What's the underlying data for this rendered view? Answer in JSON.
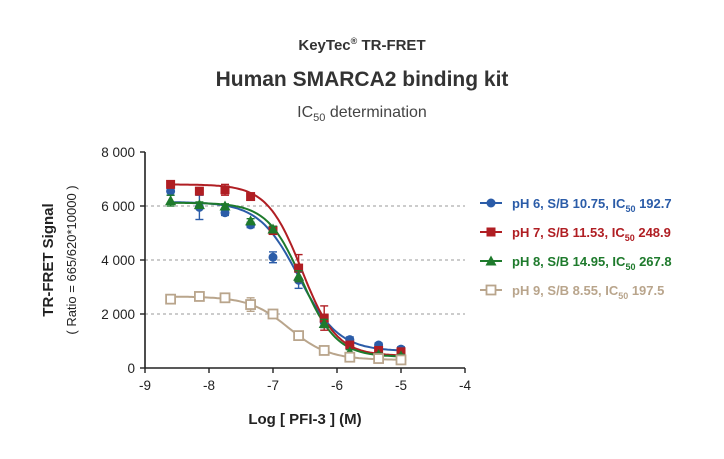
{
  "header": {
    "brand": "KeyTec",
    "brand_mark": "®",
    "brand_suffix": " TR-FRET",
    "title": "Human SMARCA2 binding kit",
    "subtitle_prefix": "IC",
    "subtitle_sub": "50",
    "subtitle_suffix": " determination"
  },
  "chart_data": {
    "type": "scatter",
    "title": "Human SMARCA2 binding kit",
    "xlabel": "Log [ PFI-3 ]  (M)",
    "ylabel": "TR-FRET Signal",
    "ylabel2": "( Ratio = 665/620*10000 )",
    "xlim": [
      -9,
      -4
    ],
    "ylim": [
      0,
      8000
    ],
    "xticks": [
      -9,
      -8,
      -7,
      -6,
      -5,
      -4
    ],
    "xtick_labels": [
      "-9",
      "-8",
      "-7",
      "-6",
      "-5",
      "-4"
    ],
    "yticks": [
      0,
      2000,
      4000,
      6000,
      8000
    ],
    "ytick_labels": [
      "0",
      "2 000",
      "4 000",
      "6 000",
      "8 000"
    ],
    "grid": "horizontal dashed at 2 000, 4 000, 6 000",
    "legend_position": "right",
    "series": [
      {
        "name": "pH 6, S/B 10.75, IC",
        "name_sub": "50",
        "name_suffix": " 192.7",
        "color": "#2b5ca8",
        "marker": "circle",
        "fit": {
          "top": 6150,
          "bottom": 620,
          "logIC50": -6.6,
          "hill": 1.4
        },
        "x": [
          -8.6,
          -8.15,
          -7.75,
          -7.35,
          -7.0,
          -6.6,
          -6.2,
          -5.8,
          -5.35,
          -5.0
        ],
        "y": [
          6550,
          5950,
          5750,
          5300,
          4100,
          3250,
          1700,
          1050,
          850,
          700
        ],
        "err": [
          150,
          450,
          100,
          100,
          200,
          300,
          200,
          100,
          80,
          80
        ]
      },
      {
        "name": "pH 7, S/B 11.53, IC",
        "name_sub": "50",
        "name_suffix": " 248.9",
        "color": "#b01e23",
        "marker": "square",
        "fit": {
          "top": 6800,
          "bottom": 450,
          "logIC50": -6.55,
          "hill": 1.6
        },
        "x": [
          -8.6,
          -8.15,
          -7.75,
          -7.35,
          -7.0,
          -6.6,
          -6.2,
          -5.8,
          -5.35,
          -5.0
        ],
        "y": [
          6800,
          6550,
          6600,
          6350,
          5100,
          3700,
          1850,
          850,
          650,
          600
        ],
        "err": [
          100,
          100,
          200,
          100,
          150,
          500,
          450,
          100,
          50,
          50
        ]
      },
      {
        "name": "pH 8, S/B 14.95, IC",
        "name_sub": "50",
        "name_suffix": " 267.8",
        "color": "#1e7a2c",
        "marker": "triangle",
        "fit": {
          "top": 6120,
          "bottom": 410,
          "logIC50": -6.55,
          "hill": 1.6
        },
        "x": [
          -8.6,
          -8.15,
          -7.75,
          -7.35,
          -7.0,
          -6.6,
          -6.2,
          -5.8,
          -5.35,
          -5.0
        ],
        "y": [
          6200,
          6050,
          6000,
          5450,
          5150,
          3400,
          1650,
          600,
          500,
          450
        ],
        "err": [
          200,
          100,
          80,
          80,
          100,
          200,
          150,
          80,
          50,
          50
        ]
      },
      {
        "name": "pH 9, S/B 8.55, IC",
        "name_sub": "50",
        "name_suffix": " 197.5",
        "color": "#b9a58c",
        "marker": "square-open",
        "fit": {
          "top": 2650,
          "bottom": 300,
          "logIC50": -6.75,
          "hill": 1.4
        },
        "x": [
          -8.6,
          -8.15,
          -7.75,
          -7.35,
          -7.0,
          -6.6,
          -6.2,
          -5.8,
          -5.35,
          -5.0
        ],
        "y": [
          2550,
          2650,
          2600,
          2350,
          2000,
          1200,
          650,
          400,
          350,
          300
        ],
        "err": [
          80,
          80,
          80,
          250,
          80,
          150,
          80,
          50,
          50,
          50
        ]
      }
    ]
  }
}
